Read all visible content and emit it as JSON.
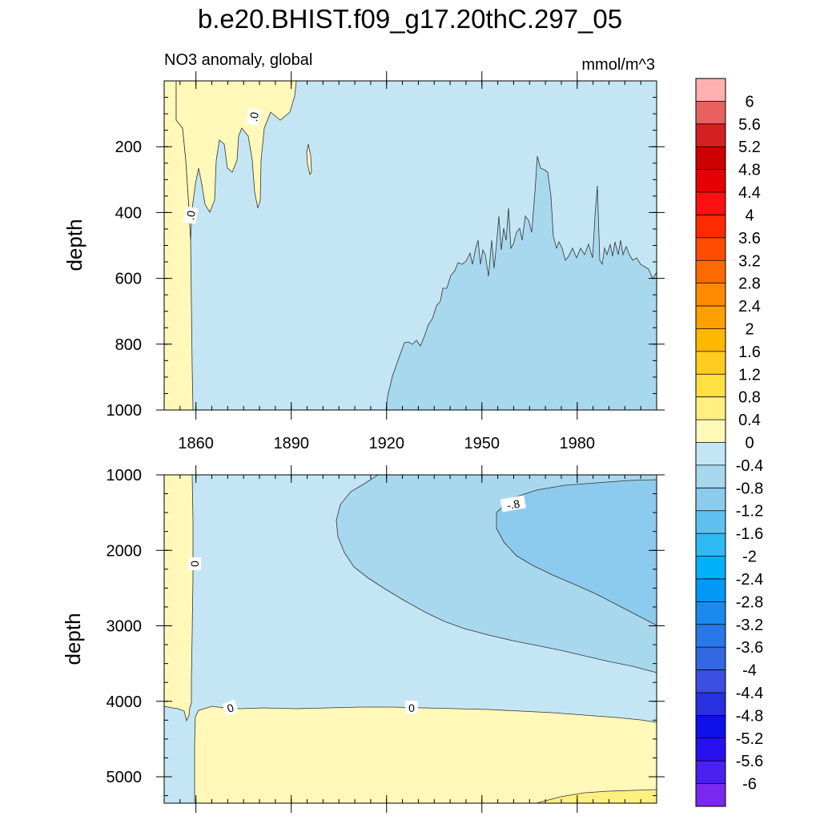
{
  "chart_data": [
    {
      "type": "contour",
      "title": "b.e20.BHIST.f09_g17.20thC.297_05",
      "left_subtitle": "NO3 anomaly, global",
      "right_subtitle": "mmol/m^3",
      "ylabel": "depth",
      "xlim": [
        1850,
        2005
      ],
      "ylim": [
        1000,
        0
      ],
      "x_ticks": [
        1860,
        1890,
        1920,
        1950,
        1980
      ],
      "x_tick_labels": [
        "1860",
        "1890",
        "1920",
        "1950",
        "1980"
      ],
      "y_ticks": [
        200,
        400,
        600,
        800,
        1000
      ],
      "y_tick_labels": [
        "200",
        "400",
        "600",
        "800",
        "1000"
      ],
      "contour_labels": [
        ".0",
        ".0"
      ],
      "regions": [
        {
          "level": "0 to 0.4",
          "description": "early-period band near surface (1850-1860) and patches to ~1890"
        },
        {
          "level": "-0.4 to 0",
          "description": "background"
        },
        {
          "level": "-0.8 to -0.4",
          "description": "deepening layer after ~1920 reaching ~600 m by 2000"
        }
      ]
    },
    {
      "type": "contour",
      "ylabel": "depth",
      "xlim": [
        1850,
        2005
      ],
      "ylim": [
        5350,
        1000
      ],
      "y_ticks": [
        1000,
        2000,
        3000,
        4000,
        5000
      ],
      "y_tick_labels": [
        "1000",
        "2000",
        "3000",
        "4000",
        "5000"
      ],
      "contour_labels": [
        "-.8",
        "0",
        "0",
        "0"
      ],
      "regions": [
        {
          "level": "0 to 0.4",
          "description": "1850-1860 column and abyssal layer below ~4100 m"
        },
        {
          "level": "-0.4 to 0",
          "description": "background"
        },
        {
          "level": "-0.8 to -0.4",
          "description": "wedge from ~1905 widening to 2005"
        },
        {
          "level": "-1.2 to -0.8",
          "description": "core after ~1955 around 1000-3000 m"
        },
        {
          "level": "0.4 to 0.8",
          "description": "deepest layer near bottom after ~1965"
        }
      ]
    }
  ],
  "colorbar": {
    "labels": [
      "6",
      "5.6",
      "5.2",
      "4.8",
      "4.4",
      "4",
      "3.6",
      "3.2",
      "2.8",
      "2.4",
      "2",
      "1.6",
      "1.2",
      "0.8",
      "0.4",
      "0",
      "-0.4",
      "-0.8",
      "-1.2",
      "-1.6",
      "-2",
      "-2.4",
      "-2.8",
      "-3.2",
      "-3.6",
      "-4",
      "-4.4",
      "-4.8",
      "-5.2",
      "-5.6",
      "-6"
    ],
    "colors": [
      "#ffb0b0",
      "#e86060",
      "#d42020",
      "#cc0000",
      "#e60000",
      "#ff1010",
      "#ff2a00",
      "#ff4d00",
      "#ff6a00",
      "#ff8a00",
      "#ffa000",
      "#ffb800",
      "#ffcc20",
      "#ffe040",
      "#fff080",
      "#fff8b8",
      "#c4e6f4",
      "#a8d8ee",
      "#8ccbee",
      "#60c0f0",
      "#30baf4",
      "#00b0f8",
      "#0098f4",
      "#1a8af0",
      "#2878e8",
      "#3268e0",
      "#3a4ee0",
      "#2830e0",
      "#1010e8",
      "#2a10f0",
      "#4a20f0",
      "#7a28f0"
    ]
  },
  "colors": {
    "c_pos_low": "#fff8b8",
    "c_pos_2": "#fff080",
    "c_neg_1": "#c4e6f4",
    "c_neg_2": "#a8d8ee",
    "c_neg_3": "#8ccbee"
  }
}
